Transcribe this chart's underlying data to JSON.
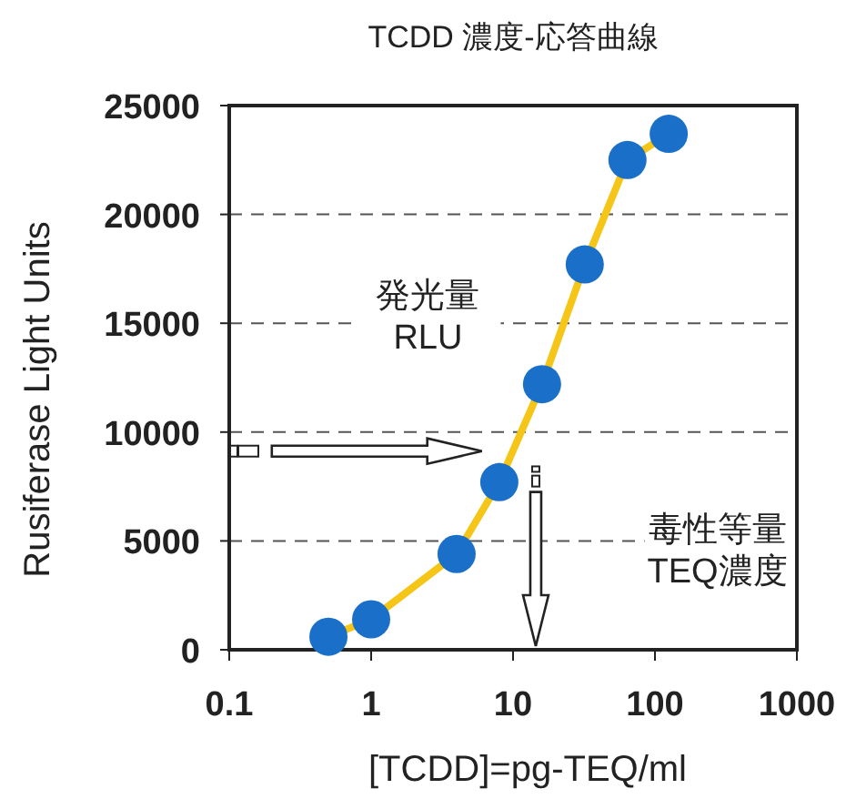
{
  "chart_data": {
    "type": "line",
    "title": "TCDD 濃度-応答曲線",
    "xlabel": "[TCDD]=pg-TEQ/ml",
    "ylabel": "Rusiferase Light Units",
    "x": [
      0.5,
      1,
      4,
      8,
      16,
      32,
      64,
      125
    ],
    "series": [
      {
        "color": "#f5c518",
        "colors": [
          "#1a6fc9",
          "#1a6fc9",
          "#1a6fc9",
          "#1a6fc9",
          "#1a6fc9",
          "#1a6fc9",
          "#1a6fc9",
          "#1a6fc9"
        ],
        "values": [
          600,
          1400,
          4400,
          7700,
          12200,
          17700,
          22500,
          23700
        ]
      }
    ],
    "log": "x",
    "xlim": [
      0.1,
      1000
    ],
    "xticks": [
      0.1,
      1,
      10,
      100,
      1000
    ],
    "ylim": [
      0,
      25000
    ],
    "yticks": [
      0,
      5000,
      10000,
      15000,
      20000,
      25000
    ],
    "grid": "y",
    "marker": "circle",
    "line_style": "solid",
    "annotations": [
      "発光量\nRLU",
      "毒性等量\nTEQ濃度"
    ]
  }
}
